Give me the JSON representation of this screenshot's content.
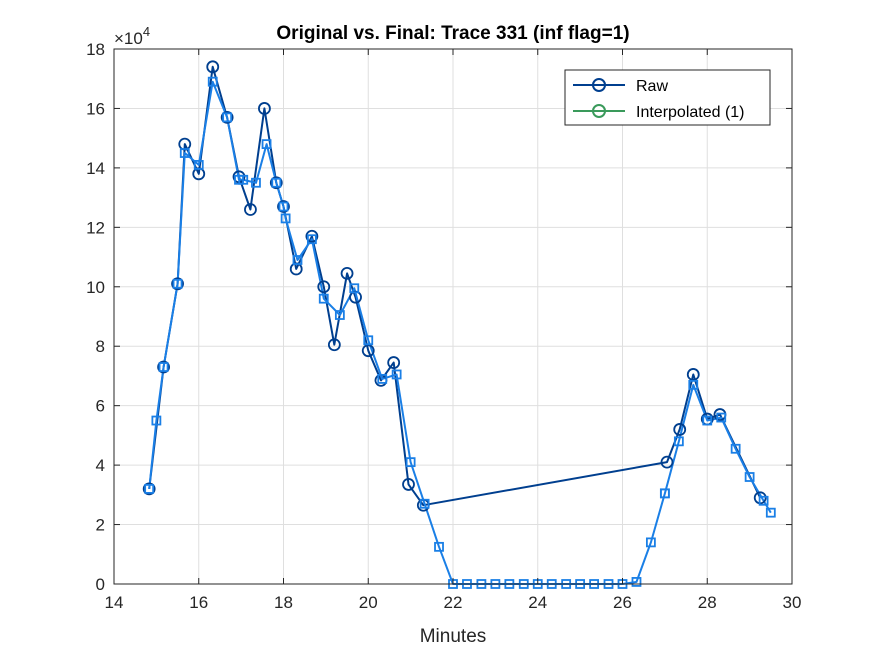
{
  "chart_data": {
    "type": "line",
    "title": "Original vs. Final: Trace 331 (inf flag=1)",
    "xlabel": "Minutes",
    "ylabel": "",
    "xlim": [
      14,
      30
    ],
    "ylim": [
      0,
      180000
    ],
    "xticks": [
      14,
      16,
      18,
      20,
      22,
      24,
      26,
      28,
      30
    ],
    "yticks": [
      0,
      2,
      4,
      6,
      8,
      10,
      12,
      14,
      16,
      18
    ],
    "y_exponent_base": "×10",
    "y_exponent_power": "4",
    "grid": true,
    "legend_position": "top-right",
    "colors": {
      "raw": "#003f8f",
      "interpolated_legend": "#3a9a5b",
      "final_trace": "#1a7fe6"
    },
    "series": [
      {
        "name": "Raw",
        "marker": "circle",
        "x": [
          14.83,
          15.17,
          15.5,
          15.67,
          16.0,
          16.33,
          16.67,
          16.95,
          17.22,
          17.55,
          17.83,
          18.0,
          18.3,
          18.67,
          18.95,
          19.2,
          19.5,
          19.7,
          20.0,
          20.3,
          20.6,
          20.95,
          21.3,
          27.05,
          27.35,
          27.67,
          28.0,
          28.3,
          29.25
        ],
        "y": [
          32000,
          73000,
          101000,
          148000,
          138000,
          174000,
          157000,
          137000,
          126000,
          160000,
          135000,
          127000,
          106000,
          117000,
          100000,
          80500,
          104500,
          96500,
          78500,
          68500,
          74500,
          33500,
          26500,
          41000,
          52000,
          70500,
          55500,
          57000,
          29000
        ]
      },
      {
        "name": "Interpolated (1)",
        "marker": "circle",
        "x": [],
        "y": []
      }
    ],
    "final_trace": {
      "marker": "square",
      "x": [
        14.83,
        15.0,
        15.17,
        15.5,
        15.67,
        16.0,
        16.33,
        16.67,
        16.95,
        17.05,
        17.35,
        17.6,
        17.83,
        18.0,
        18.05,
        18.33,
        18.67,
        18.95,
        19.33,
        19.67,
        20.0,
        20.33,
        20.67,
        21.0,
        21.33,
        21.67,
        22.0,
        22.33,
        22.67,
        23.0,
        23.33,
        23.67,
        24.0,
        24.33,
        24.67,
        25.0,
        25.33,
        25.67,
        26.0,
        26.33,
        26.67,
        27.0,
        27.0,
        27.33,
        27.67,
        28.0,
        28.33,
        28.67,
        29.0,
        29.33,
        29.5
      ],
      "y": [
        32000,
        55000,
        73000,
        101000,
        145000,
        141000,
        169000,
        157000,
        136000,
        136000,
        135000,
        148000,
        135000,
        127000,
        123000,
        109000,
        116000,
        96000,
        90500,
        99500,
        82000,
        69000,
        70500,
        41000,
        27000,
        12500,
        0,
        0,
        0,
        0,
        0,
        0,
        0,
        0,
        0,
        0,
        0,
        0,
        0,
        700,
        14000,
        30500,
        30500,
        48000,
        67000,
        55000,
        56000,
        45500,
        36000,
        28000,
        24000
      ]
    }
  }
}
